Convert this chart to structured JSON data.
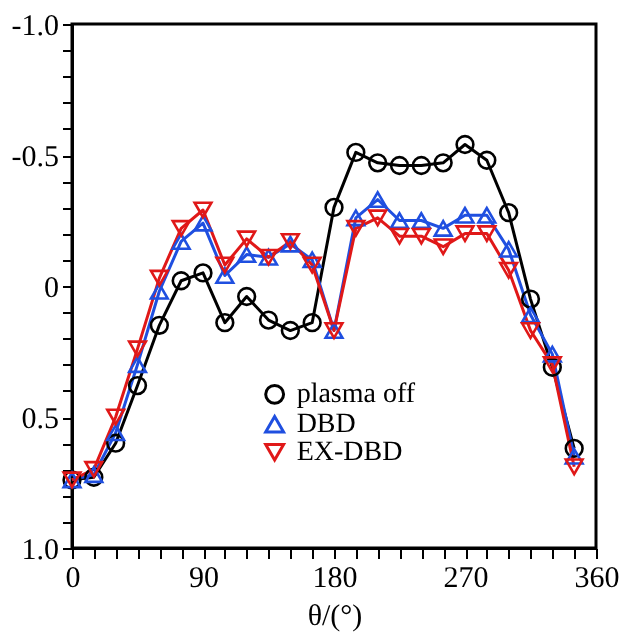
{
  "chart_data": {
    "type": "line",
    "xlabel": "θ/(°)",
    "x": [
      0,
      15,
      30,
      45,
      60,
      75,
      90,
      105,
      120,
      135,
      150,
      165,
      180,
      195,
      210,
      225,
      240,
      255,
      270,
      285,
      300,
      315,
      330,
      345
    ],
    "series": [
      {
        "name": "plasma off",
        "color": "#000000",
        "marker": "circle",
        "values": [
          0.74,
          0.73,
          0.6,
          0.38,
          0.15,
          -0.02,
          -0.05,
          0.14,
          0.04,
          0.13,
          0.17,
          0.14,
          -0.3,
          -0.51,
          -0.47,
          -0.46,
          -0.46,
          -0.47,
          -0.54,
          -0.48,
          -0.28,
          0.05,
          0.31,
          0.62
        ]
      },
      {
        "name": "DBD",
        "color": "#1f4fe0",
        "marker": "triangle",
        "values": [
          0.74,
          0.72,
          0.56,
          0.3,
          0.02,
          -0.17,
          -0.24,
          -0.04,
          -0.12,
          -0.11,
          -0.16,
          -0.1,
          0.17,
          -0.26,
          -0.33,
          -0.25,
          -0.25,
          -0.22,
          -0.27,
          -0.27,
          -0.14,
          0.11,
          0.26,
          0.65
        ]
      },
      {
        "name": "EX-DBD",
        "color": "#e01818",
        "marker": "triangle-down",
        "values": [
          0.74,
          0.7,
          0.5,
          0.24,
          -0.03,
          -0.22,
          -0.29,
          -0.08,
          -0.18,
          -0.11,
          -0.17,
          -0.08,
          0.17,
          -0.22,
          -0.26,
          -0.19,
          -0.19,
          -0.15,
          -0.2,
          -0.2,
          -0.06,
          0.17,
          0.3,
          0.69
        ]
      }
    ],
    "xlim": [
      0,
      360
    ],
    "xticks": [
      0,
      {
        "value": 15,
        "label": null
      },
      {
        "value": 30,
        "label": null
      },
      {
        "value": 45,
        "label": null
      },
      {
        "value": 60,
        "label": null
      },
      {
        "value": 75,
        "label": null
      },
      90,
      {
        "value": 105,
        "label": null
      },
      {
        "value": 120,
        "label": null
      },
      {
        "value": 135,
        "label": null
      },
      {
        "value": 150,
        "label": null
      },
      {
        "value": 165,
        "label": null
      },
      180,
      {
        "value": 195,
        "label": null
      },
      {
        "value": 210,
        "label": null
      },
      {
        "value": 225,
        "label": null
      },
      {
        "value": 240,
        "label": null
      },
      {
        "value": 255,
        "label": null
      },
      270,
      {
        "value": 285,
        "label": null
      },
      {
        "value": 300,
        "label": null
      },
      {
        "value": 315,
        "label": null
      },
      {
        "value": 330,
        "label": null
      },
      {
        "value": 345,
        "label": null
      },
      360
    ],
    "ylim": [
      1.0,
      -1.0
    ],
    "yticks": [
      {
        "value": -1.0,
        "label": "-1.0"
      },
      {
        "value": -0.9,
        "label": null
      },
      {
        "value": -0.8,
        "label": null
      },
      {
        "value": -0.7,
        "label": null
      },
      {
        "value": -0.6,
        "label": null
      },
      -0.5,
      {
        "value": -0.4,
        "label": null
      },
      {
        "value": -0.3,
        "label": null
      },
      {
        "value": -0.2,
        "label": null
      },
      {
        "value": -0.1,
        "label": null
      },
      0,
      {
        "value": 0.1,
        "label": null
      },
      {
        "value": 0.2,
        "label": null
      },
      {
        "value": 0.3,
        "label": null
      },
      {
        "value": 0.4,
        "label": null
      },
      0.5,
      {
        "value": 0.6,
        "label": null
      },
      {
        "value": 0.7,
        "label": null
      },
      {
        "value": 0.8,
        "label": null
      },
      {
        "value": 0.9,
        "label": null
      },
      {
        "value": 1.0,
        "label": "1.0"
      }
    ],
    "grid": false,
    "legend": "bottom",
    "line_style": "solid"
  }
}
